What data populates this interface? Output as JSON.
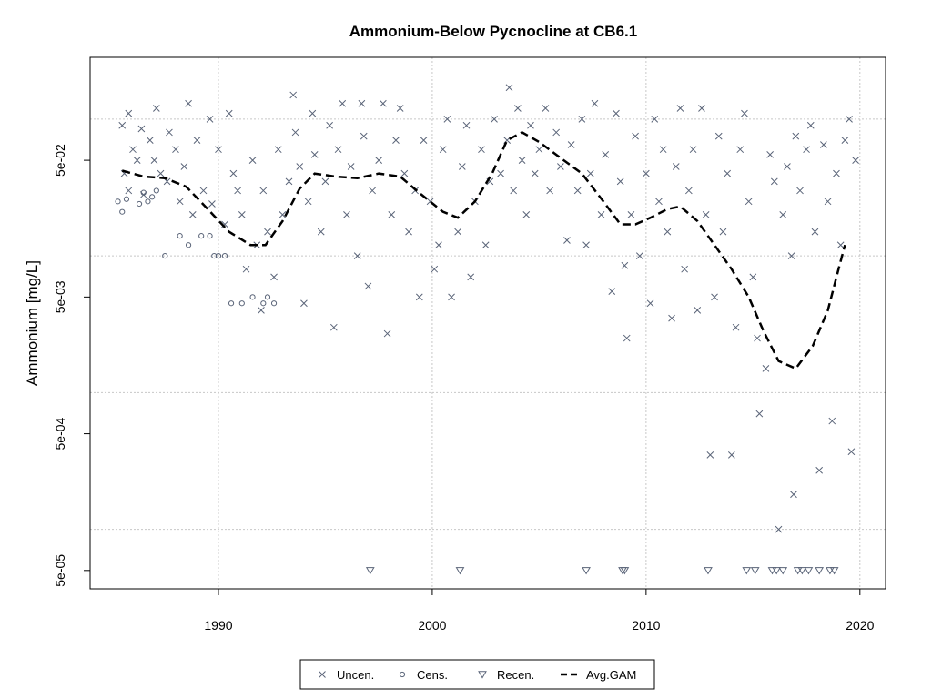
{
  "chart_data": {
    "type": "scatter",
    "title": "Ammonium-Below Pycnocline at CB6.1",
    "xlabel": "",
    "ylabel": "Ammonium [mg/L]",
    "x_scale": "linear",
    "y_scale": "log",
    "xlim": [
      1984.0,
      2021.2
    ],
    "ylim": [
      3.67e-05,
      0.283
    ],
    "x_ticks": [
      1990,
      2000,
      2010,
      2020
    ],
    "x_tick_labels": [
      "1990",
      "2000",
      "2010",
      "2020"
    ],
    "y_ticks": [
      5e-05,
      0.0005,
      0.005,
      0.05
    ],
    "y_tick_labels": [
      "5e-05",
      "5e-04",
      "5e-03",
      "5e-02"
    ],
    "grid_y": [
      0.0001,
      0.001,
      0.01,
      0.1
    ],
    "grid": true,
    "legend_position": "bottom",
    "legend": [
      {
        "label": "Uncen.",
        "marker": "x"
      },
      {
        "label": "Cens.",
        "marker": "circle"
      },
      {
        "label": "Recen.",
        "marker": "triangle-down"
      },
      {
        "label": "Avg.GAM",
        "marker": "dashed-line"
      }
    ],
    "colors": {
      "points": "#5a6478",
      "line": "#000000",
      "grid": "#c8c8c8"
    },
    "series": [
      {
        "name": "Uncen.",
        "marker": "x",
        "points": [
          [
            1985.5,
            0.09
          ],
          [
            1985.6,
            0.04
          ],
          [
            1985.8,
            0.11
          ],
          [
            1985.8,
            0.03
          ],
          [
            1986.0,
            0.06
          ],
          [
            1986.2,
            0.05
          ],
          [
            1986.4,
            0.085
          ],
          [
            1986.5,
            0.028
          ],
          [
            1986.8,
            0.07
          ],
          [
            1987.0,
            0.05
          ],
          [
            1987.1,
            0.12
          ],
          [
            1987.3,
            0.04
          ],
          [
            1987.6,
            0.035
          ],
          [
            1987.7,
            0.08
          ],
          [
            1988.0,
            0.06
          ],
          [
            1988.2,
            0.025
          ],
          [
            1988.4,
            0.045
          ],
          [
            1988.6,
            0.13
          ],
          [
            1988.8,
            0.02
          ],
          [
            1989.0,
            0.07
          ],
          [
            1989.3,
            0.03
          ],
          [
            1989.6,
            0.1
          ],
          [
            1989.7,
            0.024
          ],
          [
            1990.0,
            0.06
          ],
          [
            1990.3,
            0.017
          ],
          [
            1990.5,
            0.11
          ],
          [
            1990.7,
            0.04
          ],
          [
            1990.9,
            0.03
          ],
          [
            1991.1,
            0.02
          ],
          [
            1991.3,
            0.008
          ],
          [
            1991.6,
            0.05
          ],
          [
            1991.8,
            0.012
          ],
          [
            1992.0,
            0.004
          ],
          [
            1992.1,
            0.03
          ],
          [
            1992.3,
            0.015
          ],
          [
            1992.6,
            0.007
          ],
          [
            1992.8,
            0.06
          ],
          [
            1993.0,
            0.02
          ],
          [
            1993.3,
            0.035
          ],
          [
            1993.5,
            0.15
          ],
          [
            1993.6,
            0.08
          ],
          [
            1993.8,
            0.045
          ],
          [
            1994.0,
            0.0045
          ],
          [
            1994.2,
            0.025
          ],
          [
            1994.4,
            0.11
          ],
          [
            1994.5,
            0.055
          ],
          [
            1994.8,
            0.015
          ],
          [
            1995.0,
            0.035
          ],
          [
            1995.2,
            0.09
          ],
          [
            1995.4,
            0.003
          ],
          [
            1995.6,
            0.06
          ],
          [
            1995.8,
            0.13
          ],
          [
            1996.0,
            0.02
          ],
          [
            1996.2,
            0.045
          ],
          [
            1996.5,
            0.01
          ],
          [
            1996.7,
            0.13
          ],
          [
            1996.8,
            0.075
          ],
          [
            1997.0,
            0.006
          ],
          [
            1997.2,
            0.03
          ],
          [
            1997.5,
            0.05
          ],
          [
            1997.7,
            0.13
          ],
          [
            1997.9,
            0.0027
          ],
          [
            1998.1,
            0.02
          ],
          [
            1998.3,
            0.07
          ],
          [
            1998.5,
            0.12
          ],
          [
            1998.7,
            0.04
          ],
          [
            1998.9,
            0.015
          ],
          [
            1999.2,
            0.03
          ],
          [
            1999.4,
            0.005
          ],
          [
            1999.6,
            0.07
          ],
          [
            1999.9,
            0.025
          ],
          [
            2000.1,
            0.008
          ],
          [
            2000.3,
            0.012
          ],
          [
            2000.5,
            0.06
          ],
          [
            2000.7,
            0.1
          ],
          [
            2000.9,
            0.005
          ],
          [
            2001.2,
            0.015
          ],
          [
            2001.4,
            0.045
          ],
          [
            2001.6,
            0.09
          ],
          [
            2001.8,
            0.007
          ],
          [
            2002.0,
            0.025
          ],
          [
            2002.3,
            0.06
          ],
          [
            2002.5,
            0.012
          ],
          [
            2002.7,
            0.035
          ],
          [
            2002.9,
            0.1
          ],
          [
            2003.2,
            0.04
          ],
          [
            2003.5,
            0.07
          ],
          [
            2003.6,
            0.17
          ],
          [
            2003.8,
            0.03
          ],
          [
            2004.0,
            0.12
          ],
          [
            2004.2,
            0.05
          ],
          [
            2004.4,
            0.02
          ],
          [
            2004.6,
            0.09
          ],
          [
            2004.8,
            0.04
          ],
          [
            2005.0,
            0.06
          ],
          [
            2005.3,
            0.12
          ],
          [
            2005.5,
            0.03
          ],
          [
            2005.8,
            0.08
          ],
          [
            2006.0,
            0.045
          ],
          [
            2006.3,
            0.013
          ],
          [
            2006.5,
            0.065
          ],
          [
            2006.8,
            0.03
          ],
          [
            2007.0,
            0.1
          ],
          [
            2007.2,
            0.012
          ],
          [
            2007.4,
            0.04
          ],
          [
            2007.6,
            0.13
          ],
          [
            2007.9,
            0.02
          ],
          [
            2008.1,
            0.055
          ],
          [
            2008.4,
            0.0055
          ],
          [
            2008.6,
            0.11
          ],
          [
            2008.8,
            0.035
          ],
          [
            2009.0,
            0.0085
          ],
          [
            2009.1,
            0.0025
          ],
          [
            2009.3,
            0.02
          ],
          [
            2009.5,
            0.075
          ],
          [
            2009.7,
            0.01
          ],
          [
            2010.0,
            0.04
          ],
          [
            2010.2,
            0.0045
          ],
          [
            2010.4,
            0.1
          ],
          [
            2010.6,
            0.025
          ],
          [
            2010.8,
            0.06
          ],
          [
            2011.0,
            0.015
          ],
          [
            2011.2,
            0.0035
          ],
          [
            2011.4,
            0.045
          ],
          [
            2011.6,
            0.12
          ],
          [
            2011.8,
            0.008
          ],
          [
            2012.0,
            0.03
          ],
          [
            2012.2,
            0.06
          ],
          [
            2012.4,
            0.004
          ],
          [
            2012.6,
            0.12
          ],
          [
            2012.8,
            0.02
          ],
          [
            2013.0,
            0.00035
          ],
          [
            2013.2,
            0.005
          ],
          [
            2013.4,
            0.075
          ],
          [
            2013.6,
            0.015
          ],
          [
            2013.8,
            0.04
          ],
          [
            2014.0,
            0.00035
          ],
          [
            2014.2,
            0.003
          ],
          [
            2014.4,
            0.06
          ],
          [
            2014.6,
            0.11
          ],
          [
            2014.8,
            0.025
          ],
          [
            2015.0,
            0.007
          ],
          [
            2015.2,
            0.0025
          ],
          [
            2015.3,
            0.0007
          ],
          [
            2015.6,
            0.0015
          ],
          [
            2015.8,
            0.055
          ],
          [
            2016.0,
            0.035
          ],
          [
            2016.2,
            0.0001
          ],
          [
            2016.4,
            0.02
          ],
          [
            2016.6,
            0.045
          ],
          [
            2016.8,
            0.01
          ],
          [
            2016.9,
            0.00018
          ],
          [
            2017.0,
            0.075
          ],
          [
            2017.2,
            0.03
          ],
          [
            2017.5,
            0.06
          ],
          [
            2017.7,
            0.09
          ],
          [
            2017.9,
            0.015
          ],
          [
            2018.1,
            0.00027
          ],
          [
            2018.3,
            0.065
          ],
          [
            2018.5,
            0.025
          ],
          [
            2018.7,
            0.00062
          ],
          [
            2018.9,
            0.04
          ],
          [
            2019.1,
            0.012
          ],
          [
            2019.3,
            0.07
          ],
          [
            2019.5,
            0.1
          ],
          [
            2019.6,
            0.00037
          ],
          [
            2019.8,
            0.05
          ]
        ]
      },
      {
        "name": "Cens.",
        "marker": "circle",
        "points": [
          [
            1985.3,
            0.025
          ],
          [
            1985.5,
            0.021
          ],
          [
            1985.7,
            0.026
          ],
          [
            1986.3,
            0.024
          ],
          [
            1986.5,
            0.029
          ],
          [
            1986.7,
            0.025
          ],
          [
            1986.9,
            0.027
          ],
          [
            1987.1,
            0.03
          ],
          [
            1987.5,
            0.01
          ],
          [
            1988.2,
            0.014
          ],
          [
            1988.6,
            0.012
          ],
          [
            1989.2,
            0.014
          ],
          [
            1989.6,
            0.014
          ],
          [
            1989.8,
            0.01
          ],
          [
            1990.0,
            0.01
          ],
          [
            1990.3,
            0.01
          ],
          [
            1990.6,
            0.0045
          ],
          [
            1991.1,
            0.0045
          ],
          [
            1991.6,
            0.005
          ],
          [
            1992.1,
            0.0045
          ],
          [
            1992.3,
            0.005
          ],
          [
            1992.6,
            0.0045
          ]
        ]
      },
      {
        "name": "Recen.",
        "marker": "triangle-down",
        "points": [
          [
            1997.1,
            5e-05
          ],
          [
            2001.3,
            5e-05
          ],
          [
            2007.2,
            5e-05
          ],
          [
            2008.9,
            5e-05
          ],
          [
            2009.0,
            5e-05
          ],
          [
            2012.9,
            5e-05
          ],
          [
            2014.7,
            5e-05
          ],
          [
            2015.1,
            5e-05
          ],
          [
            2015.9,
            5e-05
          ],
          [
            2016.1,
            5e-05
          ],
          [
            2016.4,
            5e-05
          ],
          [
            2017.1,
            5e-05
          ],
          [
            2017.3,
            5e-05
          ],
          [
            2017.6,
            5e-05
          ],
          [
            2018.1,
            5e-05
          ],
          [
            2018.6,
            5e-05
          ],
          [
            2018.8,
            5e-05
          ]
        ]
      },
      {
        "name": "Avg.GAM",
        "marker": "dashed-line",
        "points": [
          [
            1985.5,
            0.042
          ],
          [
            1986.5,
            0.038
          ],
          [
            1987.5,
            0.037
          ],
          [
            1988.5,
            0.032
          ],
          [
            1989.5,
            0.022
          ],
          [
            1990.5,
            0.015
          ],
          [
            1991.5,
            0.012
          ],
          [
            1992.2,
            0.012
          ],
          [
            1993.0,
            0.018
          ],
          [
            1993.8,
            0.031
          ],
          [
            1994.5,
            0.04
          ],
          [
            1995.5,
            0.038
          ],
          [
            1996.5,
            0.037
          ],
          [
            1997.5,
            0.04
          ],
          [
            1998.5,
            0.038
          ],
          [
            1999.5,
            0.028
          ],
          [
            2000.5,
            0.021
          ],
          [
            2001.2,
            0.019
          ],
          [
            2002.0,
            0.025
          ],
          [
            2002.8,
            0.04
          ],
          [
            2003.5,
            0.07
          ],
          [
            2004.2,
            0.08
          ],
          [
            2005.0,
            0.068
          ],
          [
            2006.0,
            0.052
          ],
          [
            2007.0,
            0.04
          ],
          [
            2008.0,
            0.025
          ],
          [
            2008.8,
            0.017
          ],
          [
            2009.5,
            0.017
          ],
          [
            2010.2,
            0.019
          ],
          [
            2011.0,
            0.022
          ],
          [
            2011.6,
            0.023
          ],
          [
            2012.4,
            0.018
          ],
          [
            2013.2,
            0.012
          ],
          [
            2014.0,
            0.008
          ],
          [
            2014.8,
            0.005
          ],
          [
            2015.5,
            0.0028
          ],
          [
            2016.2,
            0.0017
          ],
          [
            2017.0,
            0.0015
          ],
          [
            2017.8,
            0.0022
          ],
          [
            2018.5,
            0.004
          ],
          [
            2019.0,
            0.008
          ],
          [
            2019.3,
            0.012
          ]
        ]
      }
    ]
  }
}
